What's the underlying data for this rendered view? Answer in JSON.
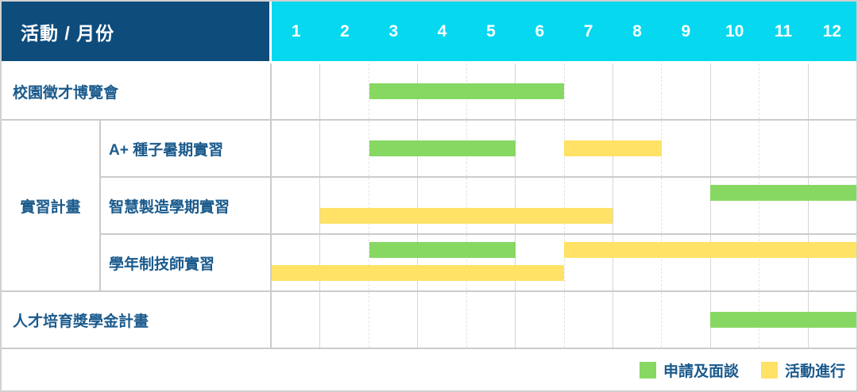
{
  "chart_data": {
    "type": "bar",
    "variant": "gantt",
    "corner_label": "活動 / 月份",
    "months": [
      "1",
      "2",
      "3",
      "4",
      "5",
      "6",
      "7",
      "8",
      "9",
      "10",
      "11",
      "12"
    ],
    "x_range": [
      1,
      12
    ],
    "grid": "monthly vertical lines, alternating solid/dashed",
    "legend_position": "bottom-right",
    "legend": [
      {
        "key": "application-interview",
        "label": "申請及面談",
        "color": "#86D862"
      },
      {
        "key": "activity-ongoing",
        "label": "活動進行",
        "color": "#FFE266"
      }
    ],
    "rows": [
      {
        "group": "",
        "label": "校園徵才博覽會",
        "lanes": [
          [
            {
              "series": "申請及面談",
              "start_month": 3,
              "end_month": 6
            }
          ]
        ]
      },
      {
        "group": "實習計畫",
        "label": "A+ 種子暑期實習",
        "lanes": [
          [
            {
              "series": "申請及面談",
              "start_month": 3,
              "end_month": 5
            },
            {
              "series": "活動進行",
              "start_month": 7,
              "end_month": 8
            }
          ]
        ]
      },
      {
        "group": "實習計畫",
        "label": "智慧製造學期實習",
        "lanes": [
          [
            {
              "series": "申請及面談",
              "start_month": 10,
              "end_month": 12
            }
          ],
          [
            {
              "series": "活動進行",
              "start_month": 2,
              "end_month": 7
            }
          ]
        ]
      },
      {
        "group": "實習計畫",
        "label": "學年制技師實習",
        "lanes": [
          [
            {
              "series": "申請及面談",
              "start_month": 3,
              "end_month": 5
            },
            {
              "series": "活動進行",
              "start_month": 7,
              "end_month": 12
            }
          ],
          [
            {
              "series": "活動進行",
              "start_month": 1,
              "end_month": 6
            }
          ]
        ]
      },
      {
        "group": "",
        "label": "人才培育獎學金計畫",
        "lanes": [
          [
            {
              "series": "申請及面談",
              "start_month": 10,
              "end_month": 12
            }
          ]
        ]
      }
    ],
    "colors": {
      "header_bg": "#0E4C7C",
      "month_header_bg": "#06D8F0",
      "header_text": "#FFFFFF",
      "row_label_text": "#1A5A8C",
      "bar_green": "#86D862",
      "bar_yellow": "#FFE266"
    }
  }
}
